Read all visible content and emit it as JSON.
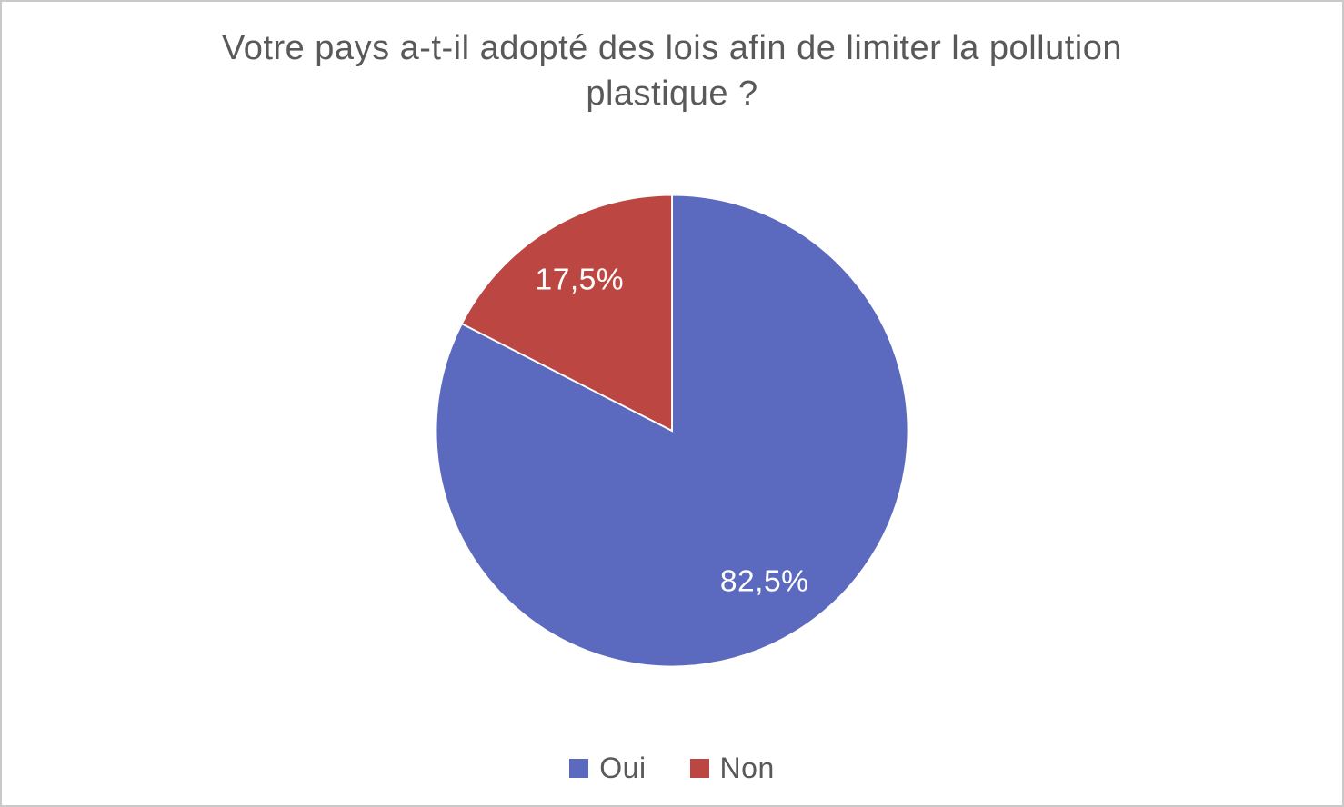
{
  "page": {
    "background_color": "#ffffff",
    "border_color": "#c9c9c9"
  },
  "chart_data": {
    "type": "pie",
    "title": "Votre pays a-t-il adopté des lois afin de limiter la pollution plastique ?",
    "title_color": "#595959",
    "labels": [
      "Oui",
      "Non"
    ],
    "values": [
      82.5,
      17.5
    ],
    "value_labels": [
      "82,5%",
      "17,5%"
    ],
    "colors": [
      "#5b6abe",
      "#bc4742"
    ],
    "slice_label_color": "#ffffff",
    "start_angle_deg": 0,
    "direction": "clockwise",
    "legend_position": "bottom",
    "legend_text_color": "#595959"
  }
}
